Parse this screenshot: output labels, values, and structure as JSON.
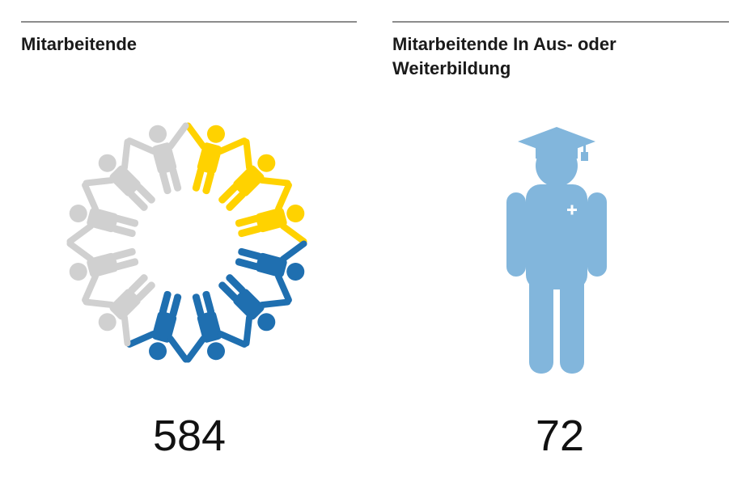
{
  "panels": [
    {
      "title": "Mitarbeitende",
      "value": "584"
    },
    {
      "title": "Mitarbeitende In Aus- oder Weiterbildung",
      "value": "72"
    }
  ]
}
